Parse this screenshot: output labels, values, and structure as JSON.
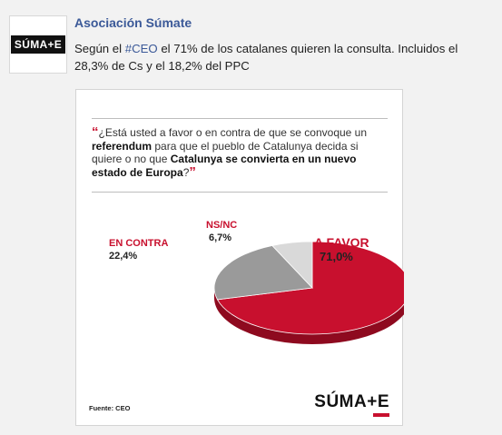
{
  "post": {
    "avatar_text": "SÚMA+E",
    "author": "Asociación Súmate",
    "text_before": "Según el ",
    "hashtag": "#CEO",
    "text_after": " el 71% de los catalanes quieren la consulta. Incluidos el 28,3% de Cs y el 18,2% del PPC"
  },
  "card": {
    "question": {
      "open_quote": "“",
      "part1": "¿Está usted a favor o en contra de que se convoque un ",
      "bold1": "referendum",
      "part2": " para que el pueblo de Catalunya decida si quiere o no que ",
      "bold2": "Catalunya se convierta en un nuevo estado de Europa",
      "part3": "?",
      "close_quote": "”"
    },
    "source": "Fuente: CEO",
    "brand": "SÚMA+E"
  },
  "chart_data": {
    "type": "pie",
    "slices": [
      {
        "name": "A FAVOR",
        "value": 71.0,
        "label": "71,0%",
        "color": "#c8102e"
      },
      {
        "name": "EN CONTRA",
        "value": 22.4,
        "label": "22,4%",
        "color": "#9a9a9a"
      },
      {
        "name": "NS/NC",
        "value": 6.7,
        "label": "6,7%",
        "color": "#d9d9d9"
      }
    ]
  },
  "colors": {
    "accent": "#c8102e",
    "link": "#3b5998"
  }
}
